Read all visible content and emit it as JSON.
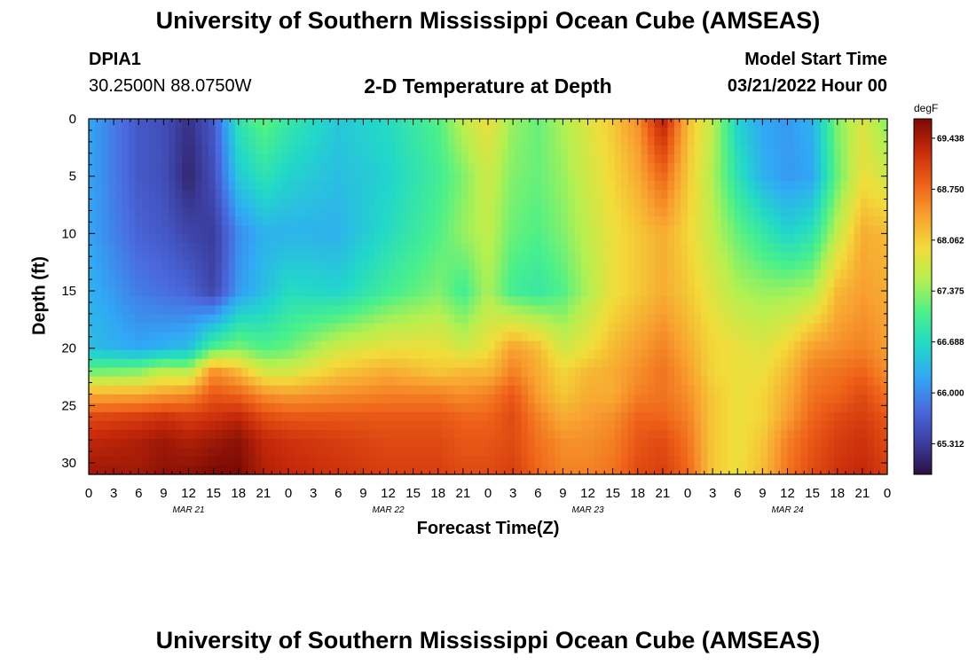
{
  "header": {
    "title": "University of Southern Mississippi Ocean Cube (AMSEAS)",
    "station_id": "DPIA1",
    "station_coords": "30.2500N  88.0750W",
    "plot_title": "2-D Temperature at Depth",
    "model_start_label": "Model Start Time",
    "model_start_value": "03/21/2022 Hour 00"
  },
  "footer": {
    "title": "University of Southern Mississippi Ocean Cube (AMSEAS)"
  },
  "chart_data": {
    "type": "heatmap",
    "title": "2-D Temperature at Depth",
    "xlabel": "Forecast Time(Z)",
    "ylabel": "Depth (ft)",
    "x_tick_labels": [
      "0",
      "3",
      "6",
      "9",
      "12",
      "15",
      "18",
      "21",
      "0",
      "3",
      "6",
      "9",
      "12",
      "15",
      "18",
      "21",
      "0",
      "3",
      "6",
      "9",
      "12",
      "15",
      "18",
      "21",
      "0",
      "3",
      "6",
      "9",
      "12",
      "15",
      "18",
      "21",
      "0"
    ],
    "x_range_hours": [
      0,
      96
    ],
    "date_labels": [
      {
        "label": "MAR 21",
        "hour": 12
      },
      {
        "label": "MAR 22",
        "hour": 36
      },
      {
        "label": "MAR 23",
        "hour": 60
      },
      {
        "label": "MAR 24",
        "hour": 84
      }
    ],
    "y_ticks": [
      0,
      5,
      10,
      15,
      20,
      25,
      30
    ],
    "y_tick_labels": [
      "0",
      "5",
      "10",
      "15",
      "20",
      "25",
      "30"
    ],
    "ylim": [
      0,
      31
    ],
    "colorbar": {
      "unit": "degF",
      "vmin": 64.9,
      "vmax": 69.7,
      "tick_values": [
        69.438,
        68.75,
        68.062,
        67.375,
        66.688,
        66.0,
        65.312
      ],
      "tick_labels": [
        "69.438",
        "68.750",
        "68.062",
        "67.375",
        "66.688",
        "66.000",
        "65.312"
      ],
      "stops": [
        "#2b1040",
        "#3c3fa0",
        "#4a6ae0",
        "#31a8f5",
        "#22d8c8",
        "#4af08a",
        "#b4f050",
        "#f2dc3a",
        "#f8a030",
        "#ee6018",
        "#c82a0a",
        "#7a0a04"
      ]
    },
    "depth_ft": [
      0,
      5,
      10,
      15,
      20,
      22,
      24,
      26,
      28,
      31
    ],
    "time_hours": [
      0,
      6,
      9,
      12,
      15,
      18,
      21,
      24,
      30,
      36,
      42,
      45,
      48,
      51,
      54,
      57,
      60,
      63,
      66,
      69,
      72,
      75,
      78,
      81,
      84,
      87,
      90,
      93,
      96
    ],
    "temperature_degF": [
      [
        66.2,
        65.6,
        65.5,
        65.2,
        65.6,
        66.8,
        67.2,
        66.9,
        66.5,
        66.7,
        67.1,
        67.6,
        67.9,
        67.4,
        67.2,
        67.5,
        67.8,
        68.1,
        68.5,
        69.4,
        68.2,
        67.6,
        66.6,
        66.2,
        66.1,
        66.3,
        67.3,
        67.8,
        67.3
      ],
      [
        66.2,
        65.6,
        65.5,
        65.1,
        65.5,
        66.5,
        66.8,
        66.6,
        66.4,
        66.6,
        67.0,
        67.3,
        67.7,
        67.3,
        67.2,
        67.4,
        67.7,
        68.0,
        68.3,
        68.8,
        68.1,
        67.5,
        66.8,
        66.3,
        66.1,
        66.2,
        67.2,
        67.9,
        67.7
      ],
      [
        66.2,
        65.7,
        65.6,
        65.4,
        65.3,
        66.0,
        66.3,
        66.3,
        66.3,
        66.7,
        67.1,
        67.4,
        67.6,
        67.2,
        67.1,
        67.3,
        67.6,
        67.9,
        68.1,
        68.3,
        68.0,
        67.6,
        67.2,
        66.9,
        66.6,
        66.8,
        67.6,
        68.3,
        68.2
      ],
      [
        66.3,
        65.9,
        65.8,
        65.7,
        65.4,
        66.1,
        66.4,
        66.7,
        66.6,
        67.0,
        67.3,
        67.0,
        67.5,
        67.0,
        66.9,
        67.1,
        67.5,
        67.9,
        68.1,
        68.3,
        68.1,
        67.8,
        67.5,
        67.4,
        67.4,
        67.5,
        68.2,
        68.4,
        68.3
      ],
      [
        66.4,
        66.2,
        66.3,
        66.4,
        67.1,
        67.3,
        67.1,
        67.2,
        67.7,
        67.9,
        67.9,
        67.7,
        67.9,
        68.4,
        68.2,
        67.7,
        67.9,
        68.2,
        68.4,
        68.6,
        68.3,
        68.0,
        67.9,
        67.8,
        68.0,
        68.4,
        68.5,
        68.6,
        68.4
      ],
      [
        67.2,
        67.3,
        67.6,
        67.5,
        68.5,
        68.2,
        67.7,
        67.7,
        68.1,
        68.3,
        68.1,
        68.2,
        68.2,
        68.6,
        68.3,
        68.0,
        68.2,
        68.3,
        68.5,
        68.7,
        68.4,
        68.0,
        67.9,
        67.9,
        68.2,
        68.6,
        68.7,
        68.8,
        68.5
      ],
      [
        68.3,
        68.3,
        68.4,
        68.5,
        68.9,
        68.8,
        68.5,
        68.4,
        68.5,
        68.6,
        68.6,
        68.5,
        68.6,
        68.9,
        68.4,
        68.1,
        68.3,
        68.3,
        68.6,
        68.7,
        68.5,
        68.1,
        67.9,
        68.0,
        68.3,
        68.7,
        68.8,
        69.0,
        68.7
      ],
      [
        69.0,
        69.1,
        69.2,
        69.1,
        69.2,
        69.3,
        69.0,
        68.9,
        68.9,
        68.9,
        68.9,
        68.8,
        68.8,
        69.0,
        68.6,
        68.3,
        68.4,
        68.5,
        68.8,
        68.8,
        68.6,
        68.1,
        67.9,
        68.0,
        68.4,
        68.8,
        69.0,
        69.1,
        68.9
      ],
      [
        69.3,
        69.4,
        69.5,
        69.4,
        69.5,
        69.6,
        69.3,
        69.2,
        69.1,
        69.0,
        69.0,
        68.9,
        68.9,
        69.0,
        68.7,
        68.5,
        68.5,
        68.6,
        68.9,
        69.0,
        68.7,
        68.1,
        67.9,
        68.1,
        68.6,
        68.9,
        69.1,
        69.2,
        69.0
      ],
      [
        69.5,
        69.5,
        69.6,
        69.6,
        69.7,
        69.7,
        69.4,
        69.3,
        69.2,
        69.1,
        69.1,
        69.0,
        69.0,
        69.1,
        68.8,
        68.6,
        68.6,
        68.7,
        69.0,
        69.1,
        68.8,
        68.1,
        67.9,
        68.2,
        68.7,
        69.0,
        69.2,
        69.3,
        69.1
      ]
    ]
  }
}
